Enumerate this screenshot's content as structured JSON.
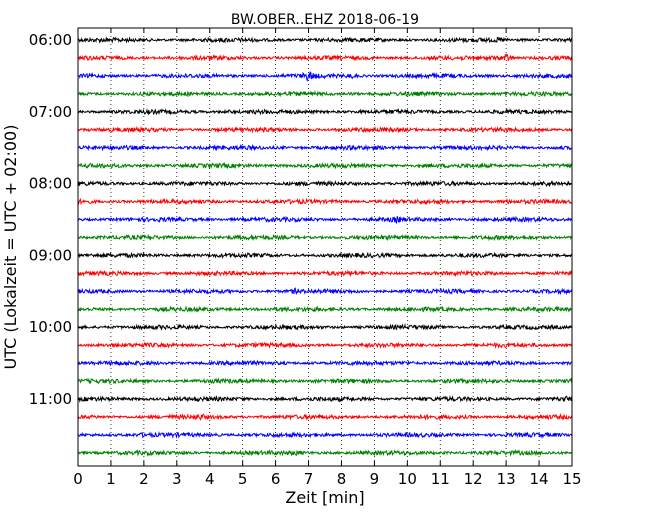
{
  "chart_data": {
    "type": "line",
    "title": "BW.OBER..EHZ 2018-06-19",
    "xlabel": "Zeit  [min]",
    "ylabel": "UTC (Lokalzeit = UTC + 02:00)",
    "xlim": [
      0,
      15
    ],
    "x_ticks": [
      "0",
      "1",
      "2",
      "3",
      "4",
      "5",
      "6",
      "7",
      "8",
      "9",
      "10",
      "11",
      "12",
      "13",
      "14",
      "15"
    ],
    "y_ticks": [
      "06:00",
      "07:00",
      "08:00",
      "09:00",
      "10:00",
      "11:00"
    ],
    "rows_per_hour": 4,
    "row_minutes": 15,
    "vertical_grid": "dotted",
    "trace_colors": [
      "#000000",
      "#ff0000",
      "#0000ff",
      "#008000"
    ],
    "series": [
      {
        "start": "06:00",
        "color": "#000000",
        "events": [
          {
            "minute": 12.8,
            "amp": 1.4
          }
        ]
      },
      {
        "start": "06:15",
        "color": "#ff0000",
        "events": [
          {
            "minute": 13.0,
            "amp": 3.0
          },
          {
            "minute": 12.6,
            "amp": 1.5
          }
        ]
      },
      {
        "start": "06:30",
        "color": "#0000ff",
        "events": [
          {
            "minute": 7.0,
            "amp": 2.0
          },
          {
            "minute": 8.3,
            "amp": 1.6
          }
        ]
      },
      {
        "start": "06:45",
        "color": "#008000",
        "events": [
          {
            "minute": 8.3,
            "amp": 1.4
          }
        ]
      },
      {
        "start": "07:00",
        "color": "#000000",
        "events": [
          {
            "minute": 4.6,
            "amp": 1.3
          }
        ]
      },
      {
        "start": "07:15",
        "color": "#ff0000",
        "events": []
      },
      {
        "start": "07:30",
        "color": "#0000ff",
        "events": [
          {
            "minute": 14.6,
            "amp": 1.3
          }
        ]
      },
      {
        "start": "07:45",
        "color": "#008000",
        "events": []
      },
      {
        "start": "08:00",
        "color": "#000000",
        "events": [
          {
            "minute": 14.3,
            "amp": 1.4
          }
        ]
      },
      {
        "start": "08:15",
        "color": "#ff0000",
        "events": [
          {
            "minute": 0.2,
            "amp": 1.4
          },
          {
            "minute": 13.0,
            "amp": 1.4
          }
        ]
      },
      {
        "start": "08:30",
        "color": "#0000ff",
        "events": [
          {
            "minute": 9.7,
            "amp": 1.4
          }
        ]
      },
      {
        "start": "08:45",
        "color": "#008000",
        "events": []
      },
      {
        "start": "09:00",
        "color": "#000000",
        "events": []
      },
      {
        "start": "09:15",
        "color": "#ff0000",
        "events": [
          {
            "minute": 8.3,
            "amp": 1.2
          }
        ]
      },
      {
        "start": "09:30",
        "color": "#0000ff",
        "events": [
          {
            "minute": 6.6,
            "amp": 1.6
          }
        ]
      },
      {
        "start": "09:45",
        "color": "#008000",
        "events": [
          {
            "minute": 5.9,
            "amp": 1.3
          }
        ]
      },
      {
        "start": "10:00",
        "color": "#000000",
        "events": []
      },
      {
        "start": "10:15",
        "color": "#ff0000",
        "events": [
          {
            "minute": 1.0,
            "amp": 1.3
          }
        ]
      },
      {
        "start": "10:30",
        "color": "#0000ff",
        "events": [
          {
            "minute": 10.0,
            "amp": 1.4
          }
        ]
      },
      {
        "start": "10:45",
        "color": "#008000",
        "events": []
      },
      {
        "start": "11:00",
        "color": "#000000",
        "events": [
          {
            "minute": 14.9,
            "amp": 1.3
          }
        ]
      },
      {
        "start": "11:15",
        "color": "#ff0000",
        "events": [
          {
            "minute": 3.7,
            "amp": 1.4
          }
        ]
      },
      {
        "start": "11:30",
        "color": "#0000ff",
        "events": [
          {
            "minute": 2.0,
            "amp": 1.3
          },
          {
            "minute": 4.2,
            "amp": 1.2
          }
        ]
      },
      {
        "start": "11:45",
        "color": "#008000",
        "events": [
          {
            "minute": 6.6,
            "amp": 1.3
          }
        ]
      }
    ]
  }
}
